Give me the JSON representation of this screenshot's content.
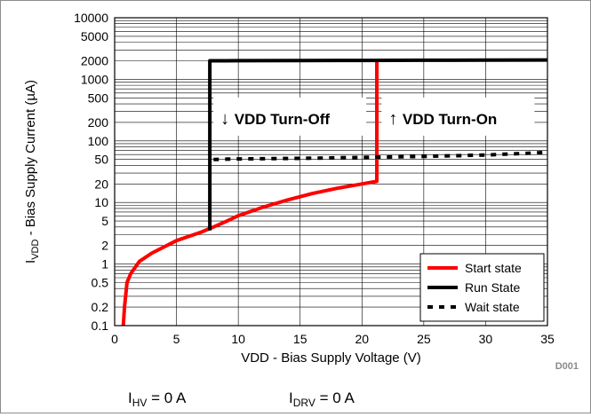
{
  "figure_id": "D001",
  "conditions": [
    {
      "symbol": "I",
      "subscript": "HV",
      "text": " = 0 A"
    },
    {
      "symbol": "I",
      "subscript": "DRV",
      "text": " = 0 A"
    }
  ],
  "chart_data": {
    "type": "line",
    "xlabel": "VDD - Bias Supply Voltage  (V)",
    "ylabel": {
      "symbol": "I",
      "subscript": "VDD",
      "text": " - Bias Supply Current  (µA)"
    },
    "xlim": [
      0,
      35
    ],
    "ylim": [
      0.1,
      10000
    ],
    "yscale": "log",
    "xticks": [
      0,
      5,
      10,
      15,
      20,
      25,
      30,
      35
    ],
    "xtick_labels": [
      "0",
      "5",
      "10",
      "15",
      "20",
      "25",
      "30",
      "35"
    ],
    "yticks": [
      0.1,
      0.2,
      0.5,
      1,
      2,
      5,
      10,
      20,
      50,
      100,
      200,
      500,
      1000,
      2000,
      5000,
      10000
    ],
    "ytick_labels": [
      "0.1",
      "0.2",
      "0.5",
      "1",
      "2",
      "5",
      "10",
      "20",
      "50",
      "100",
      "200",
      "500",
      "1000",
      "2000",
      "5000",
      "10000"
    ],
    "grid": true,
    "legend_position": "bottom-right",
    "series": [
      {
        "name": "Start state",
        "color": "#ff0000",
        "style": "solid",
        "x": [
          0.7,
          0.8,
          1.0,
          1.3,
          2.0,
          3.0,
          5.0,
          7.0,
          8.0,
          9.0,
          10.0,
          12.0,
          14.0,
          16.0,
          18.0,
          20.0,
          21.2,
          21.2
        ],
        "y": [
          0.1,
          0.2,
          0.5,
          0.7,
          1.1,
          1.5,
          2.4,
          3.3,
          4.0,
          4.9,
          6.1,
          8.4,
          11.0,
          14.0,
          17.0,
          20.0,
          22.0,
          2000
        ]
      },
      {
        "name": "Run State",
        "color": "#000000",
        "style": "solid",
        "x": [
          7.7,
          7.7,
          10.0,
          15.0,
          20.0,
          25.0,
          30.0,
          35.0
        ],
        "y": [
          3.5,
          2000,
          2010,
          2020,
          2030,
          2040,
          2050,
          2060
        ]
      },
      {
        "name": "Wait state",
        "color": "#000000",
        "style": "dashed",
        "x": [
          8.0,
          10.0,
          15.0,
          20.0,
          25.0,
          30.0,
          35.0
        ],
        "y": [
          50,
          51,
          52,
          54,
          56,
          59,
          65
        ]
      }
    ],
    "annotations": [
      {
        "arrow": "↓",
        "text": "VDD Turn-Off",
        "x": 7.7,
        "y": 200
      },
      {
        "arrow": "↑",
        "text": "VDD Turn-On",
        "x": 21.3,
        "y": 200
      }
    ]
  }
}
